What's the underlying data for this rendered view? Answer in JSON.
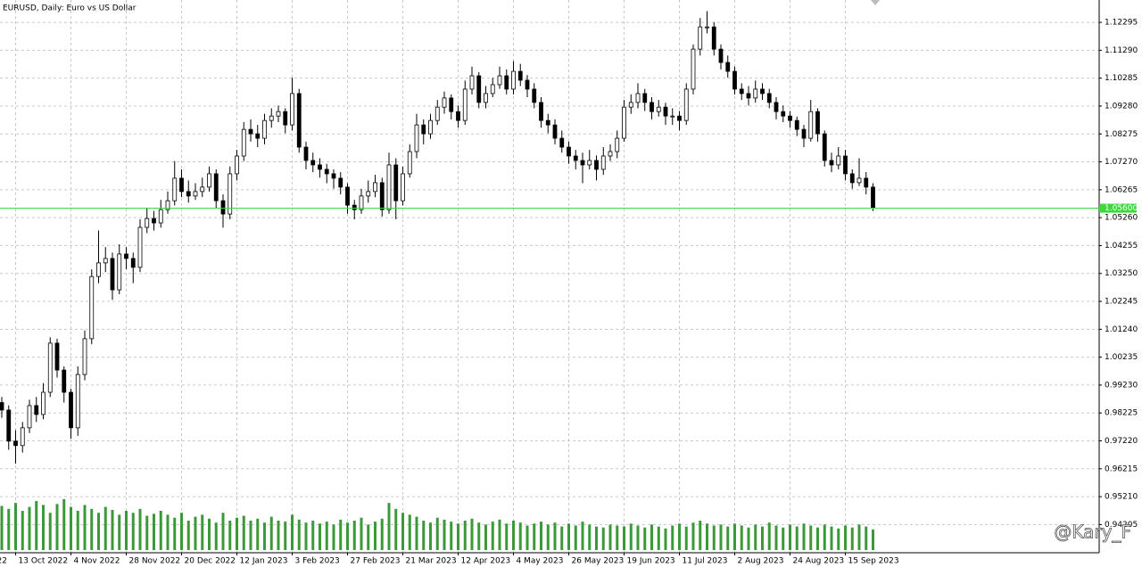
{
  "chart_data": {
    "type": "candlestick",
    "title": "EURUSD, Daily:  Euro vs US Dollar",
    "candles": [
      [
        0.986,
        0.988,
        0.9805,
        0.9833
      ],
      [
        0.9833,
        0.985,
        0.969,
        0.9721
      ],
      [
        0.9721,
        0.976,
        0.964,
        0.9705
      ],
      [
        0.9705,
        0.979,
        0.968,
        0.9769
      ],
      [
        0.9769,
        0.987,
        0.975,
        0.9849
      ],
      [
        0.9849,
        0.988,
        0.979,
        0.9817
      ],
      [
        0.9817,
        0.993,
        0.98,
        0.9897
      ],
      [
        0.9897,
        1.0095,
        0.988,
        1.0074
      ],
      [
        1.0074,
        1.009,
        0.995,
        0.9977
      ],
      [
        0.9977,
        0.999,
        0.986,
        0.9897
      ],
      [
        0.9897,
        0.991,
        0.973,
        0.9769
      ],
      [
        0.9769,
        0.999,
        0.974,
        0.9961
      ],
      [
        0.9961,
        1.012,
        0.994,
        1.009
      ],
      [
        1.009,
        1.034,
        1.007,
        1.0314
      ],
      [
        1.0314,
        1.048,
        1.029,
        1.0363
      ],
      [
        1.0363,
        1.042,
        1.033,
        1.0379
      ],
      [
        1.0379,
        1.04,
        1.023,
        1.0266
      ],
      [
        1.0266,
        1.043,
        1.025,
        1.0395
      ],
      [
        1.0395,
        1.042,
        1.034,
        1.0379
      ],
      [
        1.0379,
        1.04,
        1.029,
        1.0347
      ],
      [
        1.0347,
        1.052,
        1.033,
        1.0491
      ],
      [
        1.0491,
        1.056,
        1.047,
        1.0523
      ],
      [
        1.0523,
        1.055,
        1.048,
        1.0507
      ],
      [
        1.0507,
        1.059,
        1.049,
        1.0555
      ],
      [
        1.0555,
        1.062,
        1.054,
        1.0587
      ],
      [
        1.0587,
        1.073,
        1.057,
        1.0668
      ],
      [
        1.0668,
        1.07,
        1.06,
        1.062
      ],
      [
        1.062,
        1.066,
        1.058,
        1.0604
      ],
      [
        1.0604,
        1.065,
        1.059,
        1.062
      ],
      [
        1.062,
        1.067,
        1.06,
        1.0636
      ],
      [
        1.0636,
        1.071,
        1.062,
        1.0684
      ],
      [
        1.0684,
        1.07,
        1.056,
        1.0587
      ],
      [
        1.0587,
        1.061,
        1.049,
        1.0539
      ],
      [
        1.0539,
        1.071,
        1.052,
        1.0684
      ],
      [
        1.0684,
        1.077,
        1.066,
        1.0748
      ],
      [
        1.0748,
        1.087,
        1.073,
        1.0844
      ],
      [
        1.0844,
        1.088,
        1.08,
        1.0828
      ],
      [
        1.0828,
        1.086,
        1.078,
        1.0812
      ],
      [
        1.0812,
        1.09,
        1.079,
        1.0876
      ],
      [
        1.0876,
        1.092,
        1.085,
        1.0892
      ],
      [
        1.0892,
        1.093,
        1.087,
        1.0908
      ],
      [
        1.0908,
        1.092,
        1.083,
        1.086
      ],
      [
        1.086,
        1.103,
        1.084,
        1.0973
      ],
      [
        1.0973,
        1.099,
        1.076,
        1.078
      ],
      [
        1.078,
        1.08,
        1.07,
        1.0732
      ],
      [
        1.0732,
        1.076,
        1.069,
        1.0716
      ],
      [
        1.0716,
        1.074,
        1.067,
        1.07
      ],
      [
        1.07,
        1.072,
        1.065,
        1.0684
      ],
      [
        1.0684,
        1.07,
        1.063,
        1.0668
      ],
      [
        1.0668,
        1.069,
        1.061,
        1.0636
      ],
      [
        1.0636,
        1.065,
        1.054,
        1.0571
      ],
      [
        1.0571,
        1.059,
        1.052,
        1.0555
      ],
      [
        1.0555,
        1.063,
        1.054,
        1.0604
      ],
      [
        1.0604,
        1.066,
        1.058,
        1.062
      ],
      [
        1.062,
        1.068,
        1.06,
        1.0652
      ],
      [
        1.0652,
        1.067,
        1.053,
        1.0555
      ],
      [
        1.0555,
        1.076,
        1.054,
        1.0716
      ],
      [
        1.0716,
        1.074,
        1.052,
        1.0587
      ],
      [
        1.0587,
        1.071,
        1.057,
        1.0684
      ],
      [
        1.0684,
        1.079,
        1.067,
        1.0764
      ],
      [
        1.0764,
        1.09,
        1.074,
        1.086
      ],
      [
        1.086,
        1.088,
        1.079,
        1.0828
      ],
      [
        1.0828,
        1.09,
        1.081,
        1.0876
      ],
      [
        1.0876,
        1.095,
        1.086,
        1.0924
      ],
      [
        1.0924,
        1.098,
        1.09,
        1.0957
      ],
      [
        1.0957,
        1.097,
        1.088,
        1.0908
      ],
      [
        1.0908,
        1.093,
        1.085,
        1.0876
      ],
      [
        1.0876,
        1.102,
        1.086,
        1.0989
      ],
      [
        1.0989,
        1.107,
        1.097,
        1.1037
      ],
      [
        1.1037,
        1.105,
        1.092,
        1.0941
      ],
      [
        1.0941,
        1.1,
        1.092,
        1.0973
      ],
      [
        1.0973,
        1.103,
        1.096,
        1.1005
      ],
      [
        1.1005,
        1.107,
        1.099,
        1.1037
      ],
      [
        1.1037,
        1.106,
        1.097,
        1.0989
      ],
      [
        1.0989,
        1.109,
        1.097,
        1.1053
      ],
      [
        1.1053,
        1.108,
        1.1,
        1.1021
      ],
      [
        1.1021,
        1.104,
        1.096,
        1.0989
      ],
      [
        1.0989,
        1.101,
        1.092,
        1.0941
      ],
      [
        1.0941,
        1.096,
        1.085,
        1.0876
      ],
      [
        1.0876,
        1.09,
        1.083,
        1.086
      ],
      [
        1.086,
        1.088,
        1.079,
        1.0812
      ],
      [
        1.0812,
        1.084,
        1.076,
        1.078
      ],
      [
        1.078,
        1.08,
        1.072,
        1.0748
      ],
      [
        1.0748,
        1.077,
        1.07,
        1.0732
      ],
      [
        1.0732,
        1.076,
        1.065,
        1.0716
      ],
      [
        1.0716,
        1.077,
        1.07,
        1.0732
      ],
      [
        1.0732,
        1.075,
        1.066,
        1.07
      ],
      [
        1.07,
        1.078,
        1.068,
        1.0748
      ],
      [
        1.0748,
        1.079,
        1.073,
        1.0764
      ],
      [
        1.0764,
        1.084,
        1.074,
        1.0812
      ],
      [
        1.0812,
        1.095,
        1.08,
        1.0924
      ],
      [
        1.0924,
        1.097,
        1.09,
        1.0941
      ],
      [
        1.0941,
        1.101,
        1.092,
        1.0973
      ],
      [
        1.0973,
        1.099,
        1.091,
        1.0941
      ],
      [
        1.0941,
        1.096,
        1.088,
        1.0908
      ],
      [
        1.0908,
        1.095,
        1.089,
        1.0924
      ],
      [
        1.0924,
        1.094,
        1.086,
        1.0892
      ],
      [
        1.0892,
        1.092,
        1.086,
        1.0892
      ],
      [
        1.0892,
        1.091,
        1.084,
        1.0876
      ],
      [
        1.0876,
        1.101,
        1.086,
        1.0989
      ],
      [
        1.0989,
        1.115,
        1.097,
        1.1133
      ],
      [
        1.1133,
        1.1245,
        1.111,
        1.1213
      ],
      [
        1.1213,
        1.127,
        1.119,
        1.1213
      ],
      [
        1.1213,
        1.123,
        1.111,
        1.1133
      ],
      [
        1.1133,
        1.115,
        1.106,
        1.1085
      ],
      [
        1.1085,
        1.111,
        1.103,
        1.1053
      ],
      [
        1.1053,
        1.107,
        1.097,
        1.0989
      ],
      [
        1.0989,
        1.101,
        1.095,
        1.0973
      ],
      [
        1.0973,
        1.1,
        1.093,
        1.0957
      ],
      [
        1.0957,
        1.102,
        1.094,
        1.0989
      ],
      [
        1.0989,
        1.101,
        1.095,
        1.0973
      ],
      [
        1.0973,
        1.099,
        1.092,
        1.0941
      ],
      [
        1.0941,
        1.096,
        1.088,
        1.0908
      ],
      [
        1.0908,
        1.093,
        1.087,
        1.0892
      ],
      [
        1.0892,
        1.091,
        1.085,
        1.0876
      ],
      [
        1.0876,
        1.089,
        1.082,
        1.0844
      ],
      [
        1.0844,
        1.086,
        1.078,
        1.0812
      ],
      [
        1.0812,
        1.095,
        1.08,
        1.0908
      ],
      [
        1.0908,
        1.092,
        1.08,
        1.0828
      ],
      [
        1.0828,
        1.084,
        1.071,
        1.0732
      ],
      [
        1.0732,
        1.076,
        1.069,
        1.0716
      ],
      [
        1.0716,
        1.078,
        1.07,
        1.0748
      ],
      [
        1.0748,
        1.077,
        1.066,
        1.0684
      ],
      [
        1.0684,
        1.07,
        1.063,
        1.0652
      ],
      [
        1.0652,
        1.074,
        1.064,
        1.0668
      ],
      [
        1.0668,
        1.069,
        1.061,
        1.0636
      ],
      [
        1.0636,
        1.065,
        1.055,
        1.056
      ]
    ],
    "volumes": [
      45,
      42,
      48,
      40,
      44,
      50,
      46,
      38,
      47,
      52,
      44,
      40,
      46,
      42,
      38,
      44,
      41,
      36,
      40,
      38,
      42,
      35,
      37,
      40,
      36,
      33,
      38,
      30,
      34,
      36,
      32,
      28,
      38,
      30,
      33,
      35,
      30,
      32,
      28,
      34,
      30,
      29,
      36,
      31,
      28,
      30,
      27,
      29,
      26,
      31,
      28,
      30,
      33,
      26,
      29,
      32,
      48,
      42,
      38,
      36,
      34,
      30,
      28,
      33,
      31,
      29,
      27,
      30,
      32,
      28,
      26,
      29,
      31,
      27,
      30,
      28,
      25,
      27,
      29,
      26,
      28,
      24,
      27,
      25,
      29,
      26,
      24,
      23,
      26,
      25,
      24,
      27,
      25,
      23,
      26,
      24,
      22,
      25,
      27,
      24,
      28,
      30,
      27,
      25,
      26,
      24,
      27,
      25,
      23,
      26,
      24,
      28,
      25,
      23,
      26,
      24,
      27,
      25,
      23,
      26,
      24,
      22,
      25,
      23,
      26,
      24,
      21
    ],
    "volume_color": "#3a9a3a",
    "candle_color": "#000000",
    "ylim": [
      0.9319,
      1.131
    ],
    "yticks": [
      {
        "value": 1.12295,
        "label": "1.12295"
      },
      {
        "value": 1.1129,
        "label": "1.11290"
      },
      {
        "value": 1.10285,
        "label": "1.10285"
      },
      {
        "value": 1.0928,
        "label": "1.09280"
      },
      {
        "value": 1.08275,
        "label": "1.08275"
      },
      {
        "value": 1.0727,
        "label": "1.07270"
      },
      {
        "value": 1.06265,
        "label": "1.06265"
      },
      {
        "value": 1.0526,
        "label": "1.05260"
      },
      {
        "value": 1.04255,
        "label": "1.04255"
      },
      {
        "value": 1.0325,
        "label": "1.03250"
      },
      {
        "value": 1.02245,
        "label": "1.02245"
      },
      {
        "value": 1.0124,
        "label": "1.01240"
      },
      {
        "value": 1.00235,
        "label": "1.00235"
      },
      {
        "value": 0.9923,
        "label": "0.99230"
      },
      {
        "value": 0.98225,
        "label": "0.98225"
      },
      {
        "value": 0.9722,
        "label": "0.97220"
      },
      {
        "value": 0.96215,
        "label": "0.96215"
      },
      {
        "value": 0.9521,
        "label": "0.95210"
      },
      {
        "value": 0.94205,
        "label": "0.94205"
      }
    ],
    "xticks": [
      {
        "value": -1,
        "label": "22"
      },
      {
        "value": 2,
        "label": "13 Oct 2022"
      },
      {
        "value": 10,
        "label": "4 Nov 2022"
      },
      {
        "value": 18,
        "label": "28 Nov 2022"
      },
      {
        "value": 26,
        "label": "20 Dec 2022"
      },
      {
        "value": 34,
        "label": "12 Jan 2023"
      },
      {
        "value": 42,
        "label": "3 Feb 2023"
      },
      {
        "value": 50,
        "label": "27 Feb 2023"
      },
      {
        "value": 58,
        "label": "21 Mar 2023"
      },
      {
        "value": 66,
        "label": "12 Apr 2023"
      },
      {
        "value": 74,
        "label": "4 May 2023"
      },
      {
        "value": 82,
        "label": "26 May 2023"
      },
      {
        "value": 90,
        "label": "19 Jun 2023"
      },
      {
        "value": 98,
        "label": "11 Jul 2023"
      },
      {
        "value": 106,
        "label": "2 Aug 2023"
      },
      {
        "value": 114,
        "label": "24 Aug 2023"
      },
      {
        "value": 122,
        "label": "15 Sep 2023"
      }
    ],
    "price_line": {
      "value": 1.056,
      "label": "1.05600",
      "color": "#3cd83c"
    },
    "grid": true,
    "watermark": "@Kary_F"
  }
}
